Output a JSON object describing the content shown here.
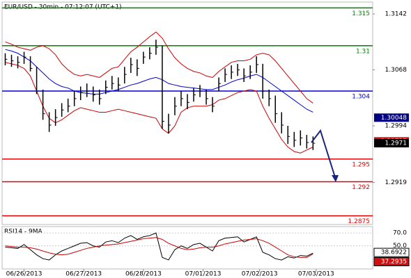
{
  "chart_data": {
    "type": "ohlc",
    "title": "EUR/USD - 30min - 07:12:07 (UTC+1)",
    "ylim": [
      1.28635,
      1.31577
    ],
    "yticks": [
      1.3142,
      1.3068,
      1.2994,
      1.2919
    ],
    "xlim": [
      -0.5,
      58.5
    ],
    "xticks": [
      {
        "value": 3,
        "label": "06/26/2013"
      },
      {
        "value": 12.5,
        "label": "06/27/2013"
      },
      {
        "value": 22,
        "label": "06/28/2013"
      },
      {
        "value": 31.5,
        "label": "07/01/2013"
      },
      {
        "value": 40.5,
        "label": "07/02/2013"
      },
      {
        "value": 49.5,
        "label": "07/03/2013"
      }
    ],
    "levels": [
      {
        "value": 1.315,
        "color": "#008000"
      },
      {
        "value": 1.31,
        "color": "#008000"
      },
      {
        "value": 1.304,
        "color": "#0000cc"
      },
      {
        "value": 1.295,
        "color": "#e00000"
      },
      {
        "value": 1.292,
        "color": "#e00000"
      },
      {
        "value": 1.2875,
        "color": "#e00000"
      }
    ],
    "bars": {
      "color": "#000000",
      "high": [
        1.309,
        1.3088,
        1.3086,
        1.3092,
        1.3086,
        1.3072,
        1.3042,
        1.3012,
        1.3016,
        1.3024,
        1.303,
        1.304,
        1.3046,
        1.305,
        1.3046,
        1.3042,
        1.3054,
        1.306,
        1.3058,
        1.3072,
        1.3084,
        1.3082,
        1.3092,
        1.3098,
        1.3108,
        1.31,
        1.301,
        1.3032,
        1.304,
        1.3036,
        1.3044,
        1.3048,
        1.3042,
        1.3032,
        1.3058,
        1.307,
        1.3074,
        1.3076,
        1.307,
        1.3074,
        1.3086,
        1.3076,
        1.3042,
        1.3034,
        1.3012,
        1.2994,
        1.2986,
        1.2988,
        1.2982,
        1.298
      ],
      "low": [
        1.3074,
        1.3072,
        1.307,
        1.3076,
        1.3066,
        1.3036,
        1.3002,
        1.2986,
        1.2994,
        1.3006,
        1.3012,
        1.302,
        1.3028,
        1.3032,
        1.3026,
        1.3022,
        1.3036,
        1.3042,
        1.304,
        1.305,
        1.3064,
        1.306,
        1.3076,
        1.3082,
        1.3088,
        1.299,
        1.2984,
        1.3008,
        1.302,
        1.3016,
        1.3026,
        1.3032,
        1.3022,
        1.3012,
        1.304,
        1.3052,
        1.3056,
        1.306,
        1.3052,
        1.3056,
        1.3064,
        1.303,
        1.302,
        1.2998,
        1.2984,
        1.297,
        1.2966,
        1.2968,
        1.2964,
        1.2962
      ],
      "close": [
        1.3082,
        1.308,
        1.3078,
        1.3085,
        1.307,
        1.304,
        1.301,
        1.2995,
        1.3005,
        1.3015,
        1.302,
        1.303,
        1.3038,
        1.304,
        1.3035,
        1.303,
        1.3045,
        1.305,
        1.3048,
        1.3062,
        1.3075,
        1.307,
        1.3085,
        1.309,
        1.3098,
        1.3,
        1.2995,
        1.302,
        1.303,
        1.3025,
        1.3035,
        1.304,
        1.303,
        1.302,
        1.305,
        1.3062,
        1.3065,
        1.3068,
        1.306,
        1.3065,
        1.3075,
        1.304,
        1.303,
        1.301,
        1.2995,
        1.298,
        1.2975,
        1.2978,
        1.2972,
        1.2971
      ]
    },
    "overlays": [
      {
        "color": "#cc0000",
        "values": [
          1.3105,
          1.3102,
          1.3098,
          1.3096,
          1.3094,
          1.3098,
          1.31,
          1.3096,
          1.3088,
          1.3076,
          1.3068,
          1.3062,
          1.306,
          1.3062,
          1.306,
          1.3058,
          1.3064,
          1.307,
          1.3072,
          1.3082,
          1.3092,
          1.3098,
          1.3105,
          1.3112,
          1.3118,
          1.311,
          1.3096,
          1.3084,
          1.3076,
          1.307,
          1.3066,
          1.3064,
          1.306,
          1.3058,
          1.3066,
          1.3072,
          1.3078,
          1.308,
          1.308,
          1.3082,
          1.3088,
          1.309,
          1.3088,
          1.308,
          1.307,
          1.306,
          1.305,
          1.304,
          1.303,
          1.3024
        ]
      },
      {
        "color": "#cc0000",
        "values": [
          1.3078,
          1.3076,
          1.3074,
          1.307,
          1.306,
          1.304,
          1.302,
          1.3004,
          1.2998,
          1.3002,
          1.3008,
          1.3014,
          1.3018,
          1.3016,
          1.3014,
          1.3012,
          1.3012,
          1.3014,
          1.3016,
          1.3014,
          1.3012,
          1.301,
          1.3008,
          1.3006,
          1.3004,
          1.299,
          1.2984,
          1.2994,
          1.3012,
          1.3018,
          1.302,
          1.302,
          1.302,
          1.3022,
          1.3028,
          1.303,
          1.3034,
          1.3038,
          1.304,
          1.3042,
          1.304,
          1.302,
          1.3004,
          1.299,
          1.2976,
          1.2966,
          1.296,
          1.2958,
          1.2962,
          1.2966
        ]
      },
      {
        "color": "#0000cc",
        "values": [
          1.3095,
          1.3093,
          1.309,
          1.3085,
          1.308,
          1.3072,
          1.3064,
          1.3056,
          1.305,
          1.3046,
          1.3044,
          1.304,
          1.3038,
          1.3037,
          1.3036,
          1.3036,
          1.3038,
          1.304,
          1.3042,
          1.3045,
          1.3048,
          1.305,
          1.3053,
          1.3056,
          1.3058,
          1.3055,
          1.305,
          1.3048,
          1.3046,
          1.3045,
          1.3044,
          1.3043,
          1.3042,
          1.3042,
          1.3045,
          1.3048,
          1.3052,
          1.3055,
          1.3057,
          1.306,
          1.3062,
          1.3058,
          1.3052,
          1.3046,
          1.304,
          1.3034,
          1.3028,
          1.3022,
          1.3016,
          1.3012
        ]
      }
    ],
    "price_boxes": [
      {
        "value": 1.30048,
        "color": "#000080",
        "text_color": "#ffffff"
      },
      {
        "value": 1.29735,
        "color": "#d01010",
        "text_color": "#ffffff"
      },
      {
        "value": 1.2971,
        "color": "#000000",
        "text_color": "#ffffff"
      }
    ],
    "rsi": {
      "title": "RSI14 - 9MA",
      "ylim": [
        14,
        80
      ],
      "yticks": [
        {
          "value": 70,
          "label": "70.0"
        },
        {
          "value": 50,
          "label": "50.0"
        }
      ],
      "series": [
        {
          "color": "#000000",
          "values": [
            48,
            47,
            46,
            52,
            44,
            36,
            30,
            28,
            36,
            42,
            46,
            50,
            54,
            55,
            50,
            48,
            56,
            58,
            55,
            62,
            66,
            60,
            64,
            66,
            70,
            32,
            28,
            44,
            50,
            46,
            52,
            54,
            48,
            42,
            58,
            62,
            63,
            64,
            56,
            60,
            64,
            40,
            36,
            30,
            28,
            33,
            31,
            35,
            34,
            38.6922
          ]
        },
        {
          "color": "#cc0000",
          "values": [
            50,
            49,
            48,
            48,
            47,
            45,
            42,
            39,
            37,
            36,
            37,
            40,
            43,
            46,
            48,
            50,
            51,
            52,
            53,
            55,
            57,
            59,
            61,
            62,
            63,
            60,
            54,
            50,
            46,
            44,
            45,
            47,
            48,
            48,
            50,
            53,
            55,
            57,
            59,
            60,
            61,
            58,
            54,
            48,
            42,
            36,
            33,
            32,
            32,
            37.2935
          ]
        }
      ],
      "boxes": [
        {
          "value": 38.6922,
          "color": "#ffffff",
          "text_color": "#000000"
        },
        {
          "value": 37.2935,
          "color": "#d01010",
          "text_color": "#ffffff"
        }
      ]
    }
  }
}
